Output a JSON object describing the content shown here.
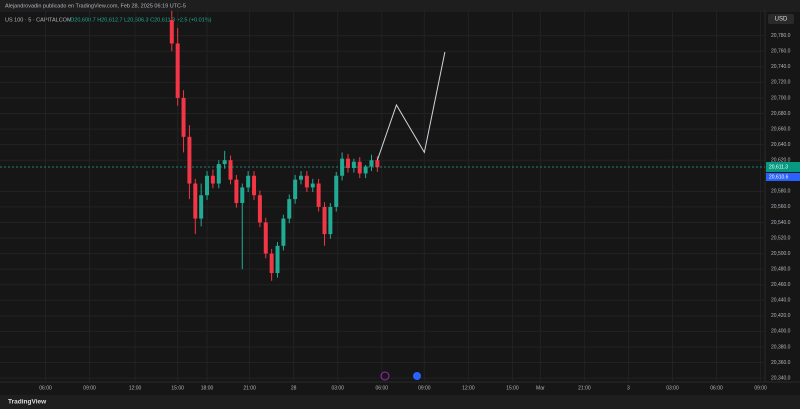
{
  "header": "Alejandrovadin publicado en TradingView.com, Feb 28, 2025 06:19 UTC-5",
  "footer": "TradingView",
  "chart_data": {
    "type": "candlestick",
    "legend_symbol": "US 100 · 5 · CAPITALCOM",
    "legend_values": "O20,608.7 H20,612.7 L20,606.3 C20,611.3 +2.5 (+0.01%)",
    "currency": "USD",
    "up_color": "#22ab94",
    "down_color": "#f23645",
    "grid": true,
    "xlim": [
      2.9,
      55.0
    ],
    "xticks": [
      {
        "value": 6,
        "label": "06:00"
      },
      {
        "value": 9,
        "label": "09:00"
      },
      {
        "value": 12.1,
        "label": "12:00"
      },
      {
        "value": 15,
        "label": "15:00"
      },
      {
        "value": 17,
        "label": "18:00"
      },
      {
        "value": 19.9,
        "label": "21:00"
      },
      {
        "value": 22.9,
        "label": "28"
      },
      {
        "value": 25.9,
        "label": "03:00"
      },
      {
        "value": 28.9,
        "label": "06:00"
      },
      {
        "value": 31.8,
        "label": "09:00"
      },
      {
        "value": 34.8,
        "label": "12:00"
      },
      {
        "value": 37.8,
        "label": "15:00"
      },
      {
        "value": 39.7,
        "label": "Mar"
      },
      {
        "value": 42.7,
        "label": "21:00"
      },
      {
        "value": 45.7,
        "label": "3"
      },
      {
        "value": 48.7,
        "label": "03:00"
      },
      {
        "value": 51.7,
        "label": "06:00"
      },
      {
        "value": 54.7,
        "label": "09:00"
      }
    ],
    "ylim": [
      20335,
      20813
    ],
    "yticks": [
      {
        "value": 20780,
        "label": "20,780.0"
      },
      {
        "value": 20760,
        "label": "20,760.0"
      },
      {
        "value": 20740,
        "label": "20,740.0"
      },
      {
        "value": 20720,
        "label": "20,720.0"
      },
      {
        "value": 20700,
        "label": "20,700.0"
      },
      {
        "value": 20680,
        "label": "20,680.0"
      },
      {
        "value": 20660,
        "label": "20,660.0"
      },
      {
        "value": 20640,
        "label": "20,640.0"
      },
      {
        "value": 20620,
        "label": "20,620.0"
      },
      {
        "value": 20580,
        "label": "20,580.0"
      },
      {
        "value": 20560,
        "label": "20,560.0"
      },
      {
        "value": 20540,
        "label": "20,540.0"
      },
      {
        "value": 20520,
        "label": "20,520.0"
      },
      {
        "value": 20500,
        "label": "20,500.0"
      },
      {
        "value": 20480,
        "label": "20,480.0"
      },
      {
        "value": 20460,
        "label": "20,460.0"
      },
      {
        "value": 20440,
        "label": "20,440.0"
      },
      {
        "value": 20420,
        "label": "20,420.0"
      },
      {
        "value": 20400,
        "label": "20,400.0"
      },
      {
        "value": 20380,
        "label": "20,380.0"
      },
      {
        "value": 20360,
        "label": "20,360.0"
      },
      {
        "value": 20340,
        "label": "20,340.0"
      }
    ],
    "x": [
      14.6,
      15.0,
      15.4,
      15.8,
      16.2,
      16.6,
      17.0,
      17.4,
      17.8,
      18.2,
      18.6,
      19.0,
      19.4,
      19.8,
      20.2,
      20.6,
      21.0,
      21.4,
      21.8,
      22.2,
      22.6,
      23.0,
      23.4,
      23.8,
      24.2,
      24.6,
      25.0,
      25.4,
      25.8,
      26.2,
      26.6,
      27.0,
      27.4,
      27.8,
      28.2,
      28.6
    ],
    "open": [
      20800,
      20770,
      20700,
      20650,
      20590,
      20545,
      20575,
      20600,
      20590,
      20615,
      20620,
      20595,
      20565,
      20585,
      20600,
      20575,
      20540,
      20500,
      20475,
      20510,
      20545,
      20570,
      20595,
      20600,
      20585,
      20590,
      20560,
      20525,
      20560,
      20600,
      20622,
      20610,
      20618,
      20603,
      20612,
      20620
    ],
    "high": [
      20812,
      20790,
      20710,
      20665,
      20596,
      20590,
      20606,
      20608,
      20620,
      20632,
      20626,
      20601,
      20590,
      20606,
      20606,
      20581,
      20546,
      20506,
      20515,
      20550,
      20576,
      20601,
      20606,
      20606,
      20596,
      20596,
      20566,
      20565,
      20605,
      20630,
      20628,
      20622,
      20624,
      20614,
      20627,
      20625
    ],
    "low": [
      20760,
      20690,
      20630,
      20570,
      20525,
      20535,
      20569,
      20584,
      20584,
      20609,
      20589,
      20559,
      20480,
      20579,
      20569,
      20534,
      20494,
      20465,
      20469,
      20504,
      20539,
      20564,
      20589,
      20579,
      20579,
      20554,
      20510,
      20519,
      20554,
      20594,
      20604,
      20604,
      20597,
      20597,
      20606,
      20605
    ],
    "close": [
      20770,
      20700,
      20650,
      20590,
      20545,
      20575,
      20600,
      20590,
      20615,
      20620,
      20595,
      20565,
      20585,
      20600,
      20575,
      20540,
      20500,
      20475,
      20510,
      20545,
      20570,
      20595,
      20600,
      20585,
      20590,
      20560,
      20525,
      20560,
      20600,
      20622,
      20610,
      20618,
      20603,
      20612,
      20620,
      20611
    ],
    "drawing": {
      "color": "#d1d4dc",
      "x": [
        28.6,
        29.9,
        31.8,
        33.2
      ],
      "values": [
        20620,
        20691,
        20630,
        20759
      ]
    },
    "last_price": {
      "value": 20611.3,
      "label": "20,611.3"
    },
    "bid_price": {
      "value": 20610.6,
      "label": "20,610.6"
    }
  }
}
